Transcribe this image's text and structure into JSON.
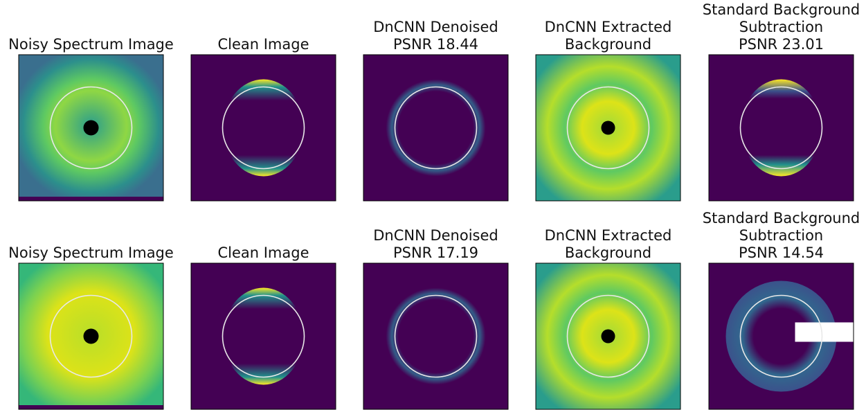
{
  "rows": [
    [
      {
        "title": [
          "Noisy Spectrum Image"
        ]
      },
      {
        "title": [
          "Clean Image"
        ]
      },
      {
        "title": [
          "DnCNN Denoised",
          "PSNR 18.44"
        ]
      },
      {
        "title": [
          "DnCNN Extracted",
          "Background"
        ]
      },
      {
        "title": [
          "Standard Background",
          "Subtraction",
          "PSNR 23.01"
        ]
      }
    ],
    [
      {
        "title": [
          "Noisy Spectrum Image"
        ]
      },
      {
        "title": [
          "Clean Image"
        ]
      },
      {
        "title": [
          "DnCNN Denoised",
          "PSNR 17.19"
        ]
      },
      {
        "title": [
          "DnCNN Extracted",
          "Background"
        ]
      },
      {
        "title": [
          "Standard Background",
          "Subtraction",
          "PSNR 14.54"
        ]
      }
    ]
  ]
}
